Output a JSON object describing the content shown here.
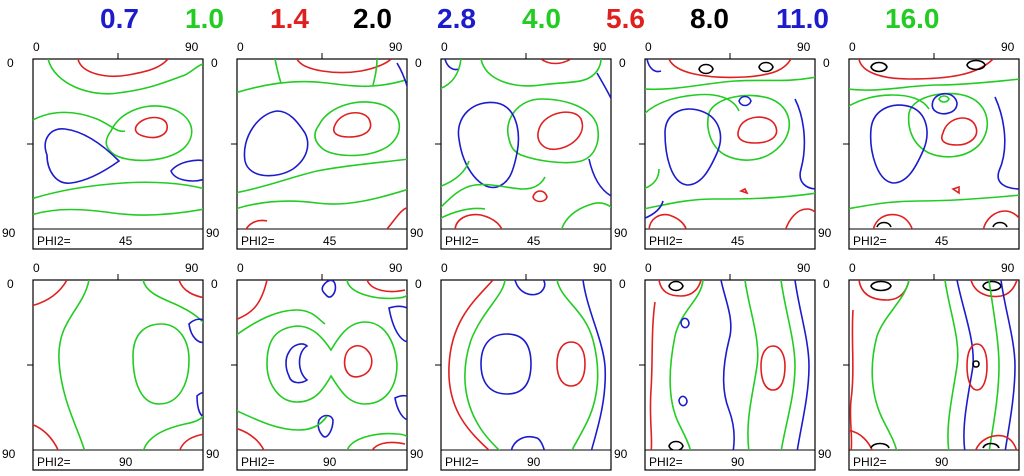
{
  "legend": {
    "levels": [
      {
        "value": "0.7",
        "color": "#1c1ccc"
      },
      {
        "value": "1.0",
        "color": "#22cc22"
      },
      {
        "value": "1.4",
        "color": "#e02020"
      },
      {
        "value": "2.0",
        "color": "#000000"
      },
      {
        "value": "2.8",
        "color": "#1c1ccc"
      },
      {
        "value": "4.0",
        "color": "#22cc22"
      },
      {
        "value": "5.6",
        "color": "#e02020"
      },
      {
        "value": "8.0",
        "color": "#000000"
      },
      {
        "value": "11.0",
        "color": "#1c1ccc"
      },
      {
        "value": "16.0",
        "color": "#22cc22"
      }
    ]
  },
  "axes": {
    "x_start": "0",
    "x_end": "90",
    "y_start": "0",
    "y_end": "90"
  },
  "rows": [
    {
      "phi_label": "PHI2=",
      "phi_value": "45"
    },
    {
      "phi_label": "PHI2=",
      "phi_value": "90"
    }
  ],
  "colors": {
    "blue": "#1c1ccc",
    "green": "#22cc22",
    "red": "#e02020",
    "black": "#000000"
  }
}
